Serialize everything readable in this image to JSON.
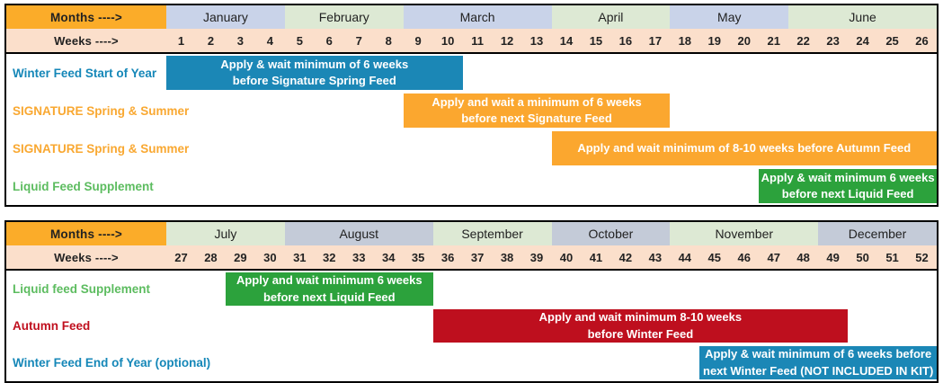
{
  "title": "Annual feeding schedule gantt",
  "colors": {
    "header_orange": "#FBAC29",
    "weeks_peach": "#FBDFCB",
    "month_lavender": "#C9D3E9",
    "month_green": "#DDE9D4",
    "month_grayblue": "#C4CBD8",
    "bar_blue": "#1B87B6",
    "bar_orange": "#FBA72F",
    "bar_green": "#2CA23C",
    "bar_red": "#BE0F1E",
    "label_teal": "#1587B8",
    "label_orange": "#F9A831",
    "label_green": "#5CBC5F",
    "label_red": "#C00F1E",
    "border_black": "#000000"
  },
  "tables": [
    {
      "name": "first-half",
      "months_label": "Months ---->",
      "weeks_label": "Weeks ---->",
      "first_week": 1,
      "months": [
        {
          "name": "January",
          "span": 4,
          "bg": "#C9D3E9"
        },
        {
          "name": "February",
          "span": 4,
          "bg": "#DDE9D4"
        },
        {
          "name": "March",
          "span": 5,
          "bg": "#C9D3E9"
        },
        {
          "name": "April",
          "span": 4,
          "bg": "#DDE9D4"
        },
        {
          "name": "May",
          "span": 4,
          "bg": "#C9D3E9"
        },
        {
          "name": "June",
          "span": 5,
          "bg": "#DDE9D4"
        }
      ],
      "weeks": [
        1,
        2,
        3,
        4,
        5,
        6,
        7,
        8,
        9,
        10,
        11,
        12,
        13,
        14,
        15,
        16,
        17,
        18,
        19,
        20,
        21,
        22,
        23,
        24,
        25,
        26
      ],
      "rows": [
        {
          "label": "Winter Feed Start of Year",
          "label_color": "#1587B8",
          "bar": {
            "start": 1,
            "end": 10,
            "color": "#1B87B6",
            "lines": [
              "Apply & wait minimum of 6 weeks",
              "before Signature Spring Feed"
            ]
          }
        },
        {
          "label": "SIGNATURE Spring & Summer",
          "label_color": "#F9A831",
          "bar": {
            "start": 9,
            "end": 17,
            "color": "#FBA72F",
            "lines": [
              "Apply and wait a minimum of 6 weeks",
              "before next Signature Feed"
            ]
          }
        },
        {
          "label": "SIGNATURE Spring & Summer",
          "label_color": "#F9A831",
          "bar": {
            "start": 14,
            "end": 26,
            "color": "#FBA72F",
            "lines": [
              "Apply and wait minimum of 8-10 weeks before Autumn Feed"
            ]
          }
        },
        {
          "label": "Liquid Feed Supplement",
          "label_color": "#5CBC5F",
          "bar": {
            "start": 21,
            "end": 26,
            "color": "#2CA23C",
            "lines": [
              "Apply & wait minimum 6 weeks",
              "before next Liquid Feed"
            ]
          }
        }
      ]
    },
    {
      "name": "second-half",
      "months_label": "Months ---->",
      "weeks_label": "Weeks ---->",
      "first_week": 27,
      "months": [
        {
          "name": "July",
          "span": 4,
          "bg": "#DDE9D4"
        },
        {
          "name": "August",
          "span": 5,
          "bg": "#C4CBD8"
        },
        {
          "name": "September",
          "span": 4,
          "bg": "#DDE9D4"
        },
        {
          "name": "October",
          "span": 4,
          "bg": "#C4CBD8"
        },
        {
          "name": "November",
          "span": 5,
          "bg": "#DDE9D4"
        },
        {
          "name": "December",
          "span": 4,
          "bg": "#C4CBD8"
        }
      ],
      "weeks": [
        27,
        28,
        29,
        30,
        31,
        32,
        33,
        34,
        35,
        36,
        37,
        38,
        39,
        40,
        41,
        42,
        43,
        44,
        45,
        46,
        47,
        48,
        49,
        50,
        51,
        52
      ],
      "rows": [
        {
          "label": "Liquid feed Supplement",
          "label_color": "#5CBC5F",
          "bar": {
            "start": 29,
            "end": 35,
            "color": "#2CA23C",
            "lines": [
              "Apply and wait minimum 6 weeks",
              "before next Liquid Feed"
            ]
          }
        },
        {
          "label": "Autumn Feed",
          "label_color": "#C00F1E",
          "bar": {
            "start": 36,
            "end": 49,
            "color": "#BE0F1E",
            "lines": [
              "Apply and wait minimum 8-10 weeks",
              "before Winter Feed"
            ]
          }
        },
        {
          "label": "Winter Feed End of Year (optional)",
          "label_color": "#1587B8",
          "bar": {
            "start": 45,
            "end": 52,
            "color": "#1B87B6",
            "lines": [
              "Apply & wait minimum of 6 weeks before",
              "next Winter Feed (NOT INCLUDED IN KIT)"
            ]
          }
        }
      ]
    }
  ],
  "chart_data": {
    "type": "bar",
    "subtype": "gantt",
    "x_unit": "week of year",
    "x_range": [
      1,
      52
    ],
    "month_spans": [
      {
        "month": "January",
        "weeks": [
          1,
          4
        ]
      },
      {
        "month": "February",
        "weeks": [
          5,
          8
        ]
      },
      {
        "month": "March",
        "weeks": [
          9,
          13
        ]
      },
      {
        "month": "April",
        "weeks": [
          14,
          17
        ]
      },
      {
        "month": "May",
        "weeks": [
          18,
          21
        ]
      },
      {
        "month": "June",
        "weeks": [
          22,
          26
        ]
      },
      {
        "month": "July",
        "weeks": [
          27,
          30
        ]
      },
      {
        "month": "August",
        "weeks": [
          31,
          35
        ]
      },
      {
        "month": "September",
        "weeks": [
          36,
          39
        ]
      },
      {
        "month": "October",
        "weeks": [
          40,
          43
        ]
      },
      {
        "month": "November",
        "weeks": [
          44,
          48
        ]
      },
      {
        "month": "December",
        "weeks": [
          49,
          52
        ]
      }
    ],
    "tasks": [
      {
        "name": "Winter Feed Start of Year",
        "start_week": 1,
        "end_week": 10,
        "color": "#1B87B6",
        "bar_label": "Apply & wait minimum of 6 weeks before Signature Spring Feed"
      },
      {
        "name": "SIGNATURE Spring & Summer",
        "start_week": 9,
        "end_week": 17,
        "color": "#FBA72F",
        "bar_label": "Apply and wait a minimum of 6 weeks before next Signature Feed"
      },
      {
        "name": "SIGNATURE Spring & Summer",
        "start_week": 14,
        "end_week": 26,
        "color": "#FBA72F",
        "bar_label": "Apply and wait minimum of 8-10 weeks before Autumn Feed"
      },
      {
        "name": "Liquid Feed Supplement",
        "start_week": 21,
        "end_week": 26,
        "color": "#2CA23C",
        "bar_label": "Apply & wait minimum 6 weeks before next Liquid Feed"
      },
      {
        "name": "Liquid feed Supplement",
        "start_week": 29,
        "end_week": 35,
        "color": "#2CA23C",
        "bar_label": "Apply and wait minimum 6 weeks before next Liquid Feed"
      },
      {
        "name": "Autumn Feed",
        "start_week": 36,
        "end_week": 49,
        "color": "#BE0F1E",
        "bar_label": "Apply and wait minimum 8-10 weeks before Winter Feed"
      },
      {
        "name": "Winter Feed End of Year (optional)",
        "start_week": 45,
        "end_week": 52,
        "color": "#1B87B6",
        "bar_label": "Apply & wait minimum of 6 weeks before next Winter Feed (NOT INCLUDED IN KIT)"
      }
    ]
  }
}
